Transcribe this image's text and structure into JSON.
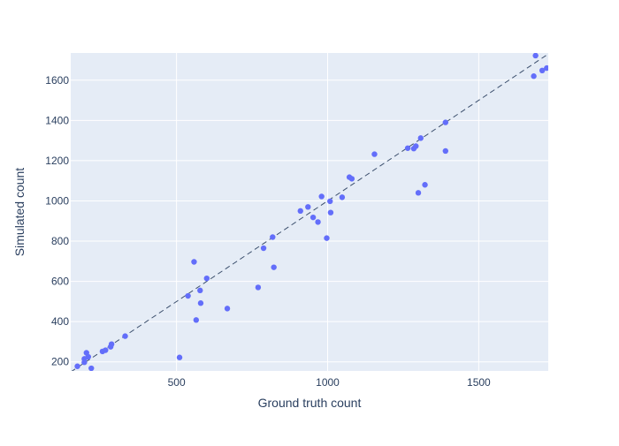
{
  "chart_data": {
    "type": "scatter",
    "title": "",
    "xlabel": "Ground truth count",
    "ylabel": "Simulated count",
    "xlim": [
      150,
      1730
    ],
    "ylim": [
      155,
      1735
    ],
    "xticks": [
      500,
      1000,
      1500
    ],
    "yticks": [
      200,
      400,
      600,
      800,
      1000,
      1200,
      1400,
      1600
    ],
    "grid": true,
    "legend": "none",
    "reference_line": "y = x (dashed)",
    "colors": {
      "plot_bg": "#e5ecf6",
      "grid": "#ffffff",
      "marker": "#636efa",
      "reference": "#2a3f5f"
    },
    "points": [
      [
        172,
        178
      ],
      [
        195,
        215
      ],
      [
        195,
        198
      ],
      [
        202,
        245
      ],
      [
        208,
        225
      ],
      [
        218,
        168
      ],
      [
        255,
        252
      ],
      [
        265,
        258
      ],
      [
        282,
        275
      ],
      [
        285,
        288
      ],
      [
        330,
        328
      ],
      [
        510,
        222
      ],
      [
        538,
        528
      ],
      [
        558,
        697
      ],
      [
        565,
        408
      ],
      [
        578,
        555
      ],
      [
        580,
        492
      ],
      [
        600,
        615
      ],
      [
        668,
        465
      ],
      [
        770,
        570
      ],
      [
        788,
        765
      ],
      [
        818,
        820
      ],
      [
        822,
        670
      ],
      [
        910,
        950
      ],
      [
        935,
        970
      ],
      [
        952,
        918
      ],
      [
        968,
        895
      ],
      [
        980,
        1022
      ],
      [
        997,
        815
      ],
      [
        1008,
        998
      ],
      [
        1010,
        942
      ],
      [
        1048,
        1018
      ],
      [
        1072,
        1118
      ],
      [
        1080,
        1110
      ],
      [
        1155,
        1232
      ],
      [
        1265,
        1262
      ],
      [
        1285,
        1260
      ],
      [
        1292,
        1272
      ],
      [
        1300,
        1040
      ],
      [
        1308,
        1312
      ],
      [
        1322,
        1080
      ],
      [
        1390,
        1390
      ],
      [
        1390,
        1248
      ],
      [
        1682,
        1620
      ],
      [
        1688,
        1722
      ],
      [
        1710,
        1648
      ],
      [
        1725,
        1660
      ]
    ]
  }
}
